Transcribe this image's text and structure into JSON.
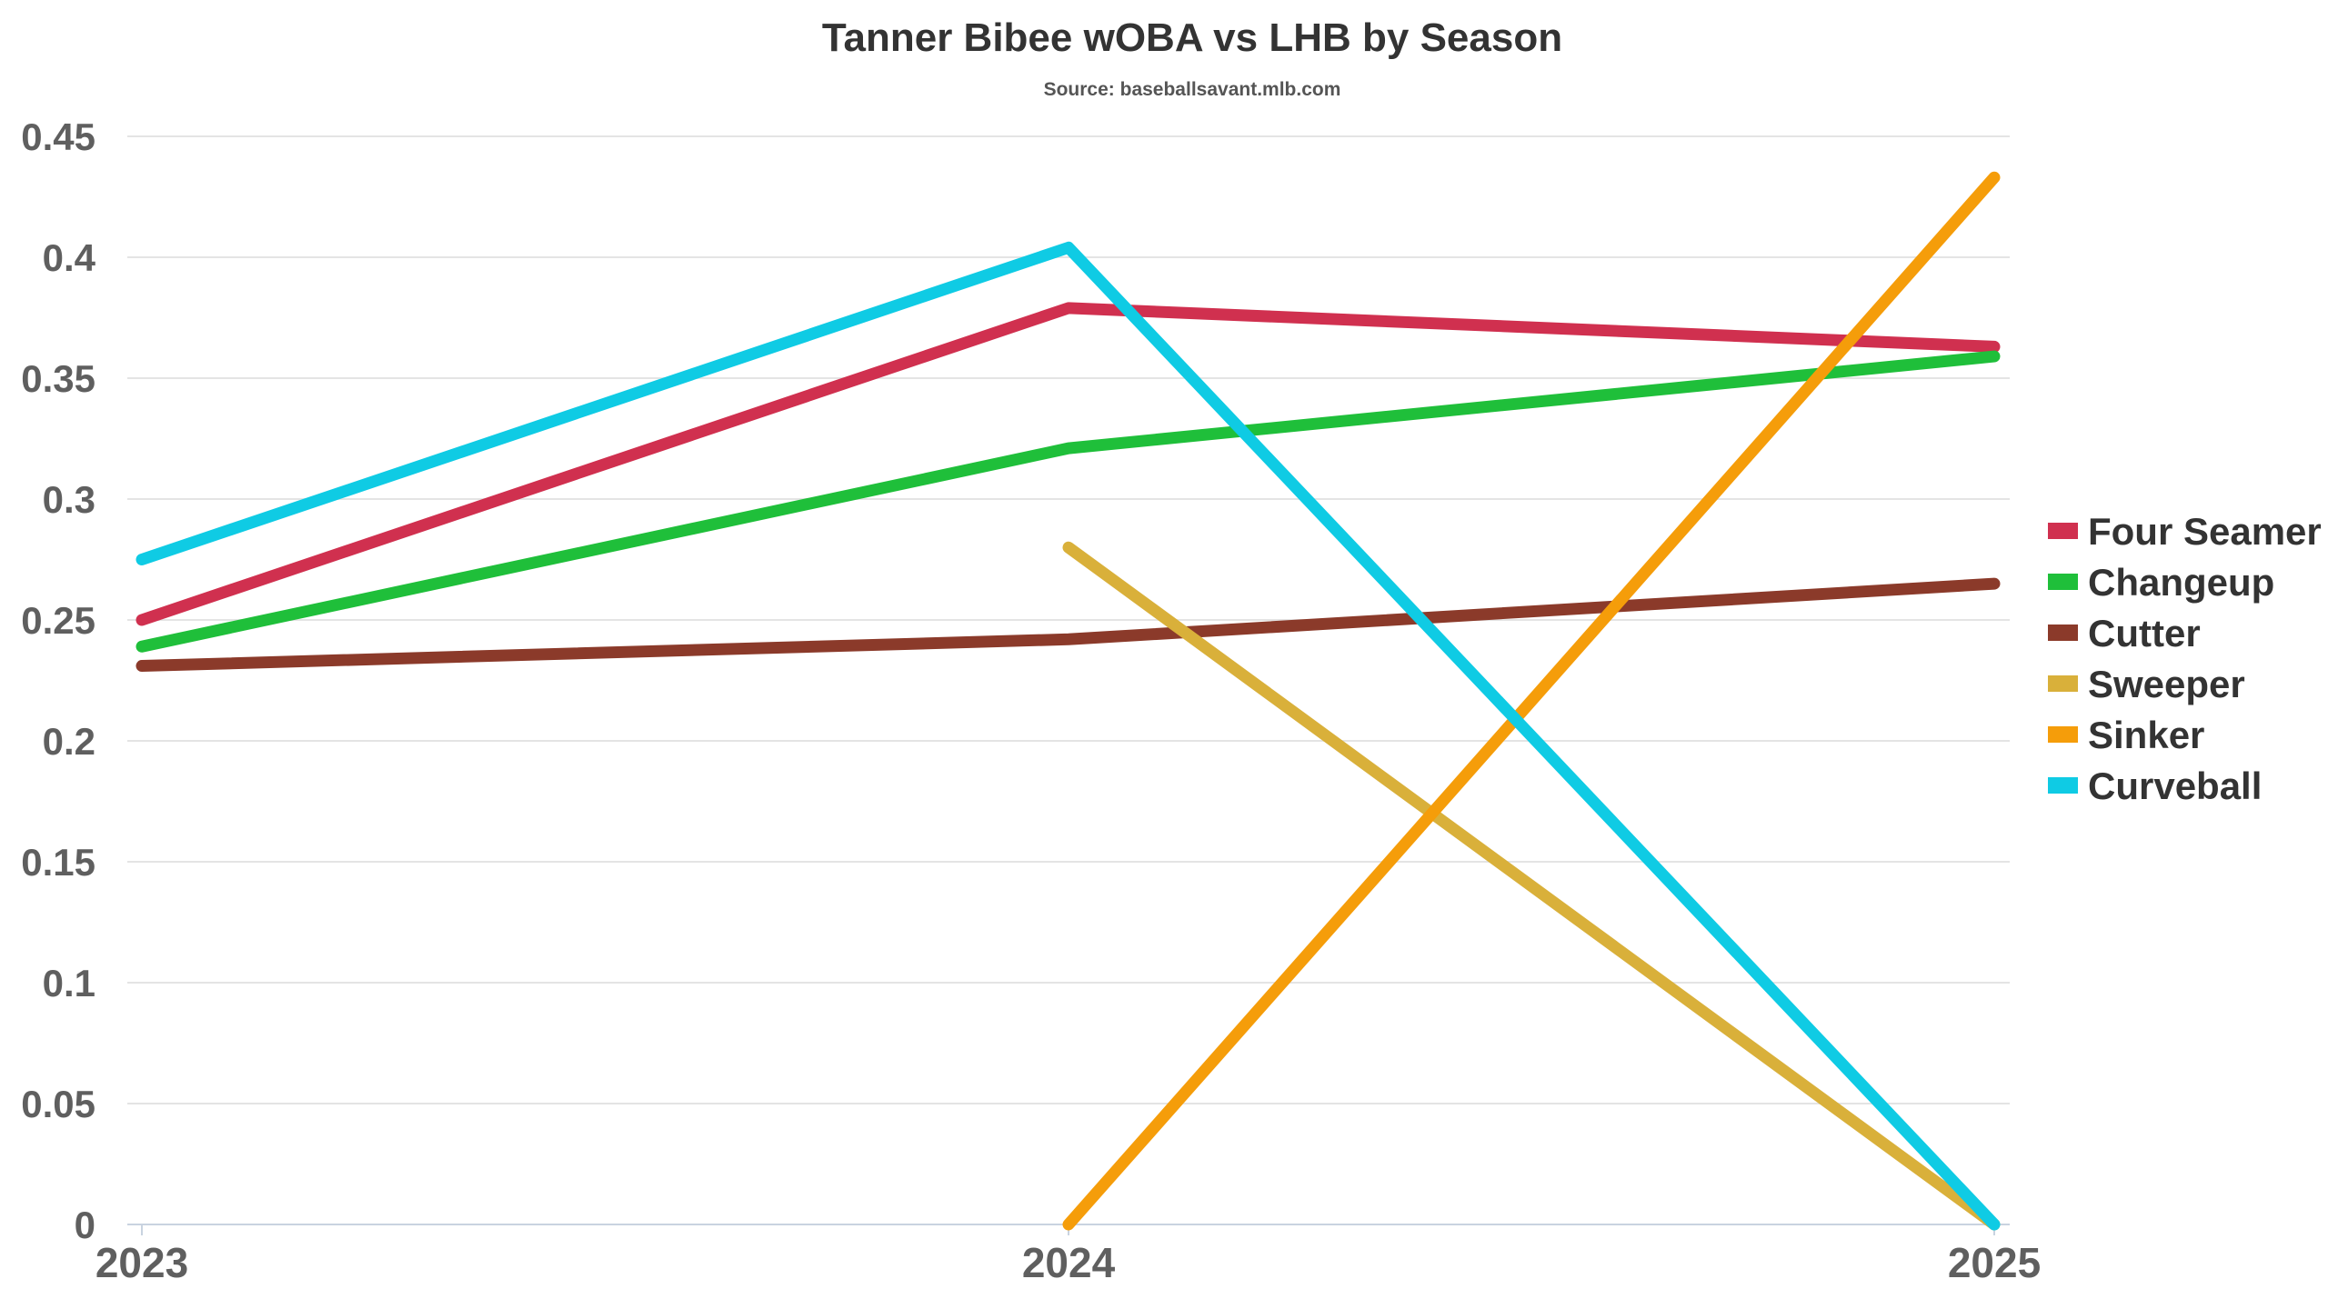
{
  "chart_data": {
    "type": "line",
    "title": "Tanner Bibee wOBA vs LHB by Season",
    "subtitle": "Source: baseballsavant.mlb.com",
    "xlabel": "",
    "ylabel": "",
    "categories": [
      "2023",
      "2024",
      "2025"
    ],
    "ylim": [
      0,
      0.45
    ],
    "yticks": [
      "0",
      "0.05",
      "0.1",
      "0.15",
      "0.2",
      "0.25",
      "0.3",
      "0.35",
      "0.4",
      "0.45"
    ],
    "ytick_values": [
      0,
      0.05,
      0.1,
      0.15,
      0.2,
      0.25,
      0.3,
      0.35,
      0.4,
      0.45
    ],
    "grid": true,
    "legend_position": "right",
    "series": [
      {
        "name": "Four Seamer",
        "color": "#d0304f",
        "values": [
          0.25,
          0.379,
          0.363
        ]
      },
      {
        "name": "Changeup",
        "color": "#1fbf3a",
        "values": [
          0.239,
          0.321,
          0.359
        ]
      },
      {
        "name": "Cutter",
        "color": "#8b3a2a",
        "values": [
          0.231,
          0.242,
          0.265
        ]
      },
      {
        "name": "Sweeper",
        "color": "#d9b03a",
        "values": [
          null,
          0.28,
          0.0
        ]
      },
      {
        "name": "Sinker",
        "color": "#f59d0a",
        "values": [
          null,
          0.0,
          0.433
        ]
      },
      {
        "name": "Curveball",
        "color": "#0fcbe4",
        "values": [
          0.275,
          0.404,
          0.0
        ]
      }
    ]
  }
}
